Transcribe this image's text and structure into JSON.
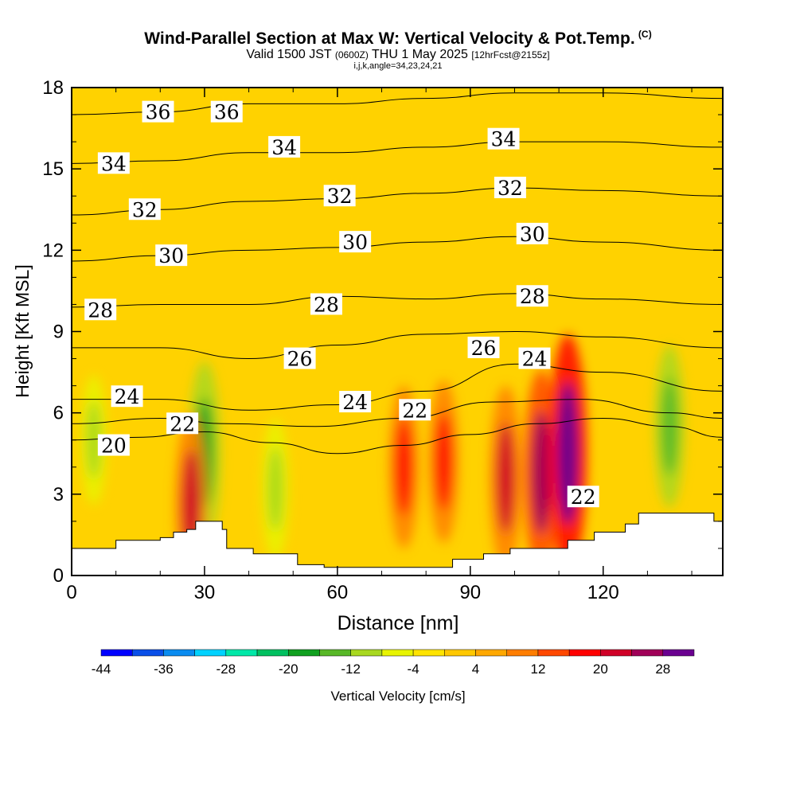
{
  "header": {
    "title": "Wind-Parallel Section at Max W: Vertical Velocity & Pot.Temp.",
    "copyright": "(C)",
    "valid_prefix": "Valid 1500 JST",
    "utc": "(0600Z)",
    "valid_date": "THU 1 May 2025",
    "forecast": "[12hrFcst@2155z]",
    "indices": "i,j,k,angle=34,23,24,21"
  },
  "chart_data": {
    "type": "heatmap",
    "title": "Wind-Parallel Section at Max W: Vertical Velocity & Pot.Temp.",
    "xlabel": "Distance [nm]",
    "ylabel": "Height [Kft MSL]",
    "xlim": [
      0,
      147
    ],
    "ylim": [
      0,
      18
    ],
    "x_ticks": [
      0,
      30,
      60,
      90,
      120
    ],
    "y_ticks": [
      0,
      3,
      6,
      9,
      12,
      15,
      18
    ],
    "colorbar": {
      "label": "Vertical Velocity [cm/s]",
      "tick_labels": [
        "-44",
        "-36",
        "-28",
        "-20",
        "-12",
        "-4",
        "4",
        "12",
        "20",
        "28"
      ],
      "levels": [
        -44,
        -40,
        -36,
        -32,
        -28,
        -24,
        -20,
        -16,
        -12,
        -8,
        -4,
        0,
        4,
        8,
        12,
        16,
        20,
        24,
        28,
        32
      ],
      "colors": [
        "#0000ff",
        "#0a4fe8",
        "#0a8cf0",
        "#00d2ff",
        "#00e8a8",
        "#00c060",
        "#10a020",
        "#58b828",
        "#a8d820",
        "#e8f400",
        "#ffe400",
        "#ffc800",
        "#ffa800",
        "#ff7e00",
        "#ff4800",
        "#ff0000",
        "#d00028",
        "#a00058",
        "#6a0090"
      ]
    },
    "terrain_profile": [
      [
        0,
        1
      ],
      [
        10,
        1
      ],
      [
        10,
        1.3
      ],
      [
        20,
        1.3
      ],
      [
        20,
        1.4
      ],
      [
        23,
        1.4
      ],
      [
        23,
        1.6
      ],
      [
        26,
        1.6
      ],
      [
        26,
        1.7
      ],
      [
        28,
        1.7
      ],
      [
        28,
        2
      ],
      [
        34,
        2
      ],
      [
        34,
        1.7
      ],
      [
        35,
        1.7
      ],
      [
        35,
        1
      ],
      [
        41,
        1
      ],
      [
        41,
        0.8
      ],
      [
        51,
        0.8
      ],
      [
        51,
        0.4
      ],
      [
        57,
        0.4
      ],
      [
        57,
        0.3
      ],
      [
        86,
        0.3
      ],
      [
        86,
        0.6
      ],
      [
        93,
        0.6
      ],
      [
        93,
        0.8
      ],
      [
        99,
        0.8
      ],
      [
        99,
        1
      ],
      [
        112,
        1
      ],
      [
        112,
        1.3
      ],
      [
        118,
        1.3
      ],
      [
        118,
        1.6
      ],
      [
        125,
        1.6
      ],
      [
        125,
        1.9
      ],
      [
        128,
        1.9
      ],
      [
        128,
        2.3
      ],
      [
        145,
        2.3
      ],
      [
        145,
        2
      ],
      [
        147,
        2
      ]
    ],
    "isentropes": [
      {
        "level": 20,
        "label": "20",
        "points": [
          [
            0,
            5.0
          ],
          [
            15,
            5.1
          ],
          [
            30,
            5.3
          ],
          [
            45,
            4.9
          ],
          [
            60,
            4.5
          ],
          [
            75,
            4.8
          ],
          [
            90,
            5.2
          ],
          [
            105,
            5.6
          ],
          [
            120,
            5.8
          ],
          [
            135,
            5.5
          ],
          [
            147,
            5.1
          ]
        ]
      },
      {
        "level": 22,
        "label": "22",
        "points": [
          [
            0,
            5.6
          ],
          [
            20,
            5.8
          ],
          [
            35,
            5.6
          ],
          [
            55,
            5.5
          ],
          [
            75,
            5.8
          ],
          [
            95,
            6.4
          ],
          [
            115,
            6.5
          ],
          [
            135,
            6.0
          ],
          [
            147,
            5.8
          ]
        ]
      },
      {
        "level": 24,
        "label": "24",
        "points": [
          [
            0,
            6.5
          ],
          [
            20,
            6.5
          ],
          [
            40,
            6.1
          ],
          [
            60,
            6.3
          ],
          [
            80,
            6.8
          ],
          [
            100,
            7.8
          ],
          [
            120,
            7.5
          ],
          [
            147,
            6.8
          ]
        ]
      },
      {
        "level": 26,
        "label": "26",
        "points": [
          [
            0,
            8.4
          ],
          [
            20,
            8.4
          ],
          [
            40,
            8.0
          ],
          [
            60,
            8.5
          ],
          [
            80,
            8.9
          ],
          [
            100,
            9.0
          ],
          [
            120,
            8.8
          ],
          [
            147,
            8.4
          ]
        ]
      },
      {
        "level": 28,
        "label": "28",
        "points": [
          [
            0,
            9.9
          ],
          [
            20,
            10.0
          ],
          [
            40,
            10.0
          ],
          [
            60,
            10.3
          ],
          [
            80,
            10.2
          ],
          [
            100,
            10.4
          ],
          [
            120,
            10.2
          ],
          [
            147,
            10.0
          ]
        ]
      },
      {
        "level": 30,
        "label": "30",
        "points": [
          [
            0,
            11.6
          ],
          [
            20,
            11.8
          ],
          [
            40,
            12.0
          ],
          [
            60,
            12.1
          ],
          [
            80,
            12.3
          ],
          [
            100,
            12.5
          ],
          [
            120,
            12.3
          ],
          [
            147,
            12.0
          ]
        ]
      },
      {
        "level": 32,
        "label": "32",
        "points": [
          [
            0,
            13.3
          ],
          [
            20,
            13.5
          ],
          [
            40,
            13.8
          ],
          [
            60,
            13.9
          ],
          [
            80,
            14.1
          ],
          [
            100,
            14.3
          ],
          [
            120,
            14.2
          ],
          [
            147,
            14.0
          ]
        ]
      },
      {
        "level": 34,
        "label": "34",
        "points": [
          [
            0,
            15.2
          ],
          [
            20,
            15.3
          ],
          [
            40,
            15.6
          ],
          [
            60,
            15.6
          ],
          [
            80,
            15.8
          ],
          [
            100,
            16.0
          ],
          [
            120,
            16.0
          ],
          [
            147,
            15.8
          ]
        ]
      },
      {
        "level": 36,
        "label": "36",
        "points": [
          [
            0,
            17.0
          ],
          [
            20,
            17.1
          ],
          [
            40,
            17.4
          ],
          [
            60,
            17.4
          ],
          [
            80,
            17.6
          ],
          [
            100,
            17.8
          ],
          [
            120,
            17.8
          ],
          [
            147,
            17.6
          ]
        ]
      }
    ],
    "contour_labels": [
      {
        "text": "36",
        "x": 19.5,
        "y": 17.1
      },
      {
        "text": "36",
        "x": 35.0,
        "y": 17.1
      },
      {
        "text": "34",
        "x": 9.5,
        "y": 15.2
      },
      {
        "text": "34",
        "x": 48.0,
        "y": 15.8
      },
      {
        "text": "34",
        "x": 97.5,
        "y": 16.1
      },
      {
        "text": "32",
        "x": 16.5,
        "y": 13.5
      },
      {
        "text": "32",
        "x": 60.5,
        "y": 14.0
      },
      {
        "text": "32",
        "x": 99.0,
        "y": 14.3
      },
      {
        "text": "30",
        "x": 22.5,
        "y": 11.8
      },
      {
        "text": "30",
        "x": 64.0,
        "y": 12.3
      },
      {
        "text": "30",
        "x": 104.0,
        "y": 12.6
      },
      {
        "text": "28",
        "x": 6.5,
        "y": 9.8
      },
      {
        "text": "28",
        "x": 57.5,
        "y": 10.0
      },
      {
        "text": "28",
        "x": 104.0,
        "y": 10.3
      },
      {
        "text": "26",
        "x": 51.5,
        "y": 8.0
      },
      {
        "text": "26",
        "x": 93.0,
        "y": 8.4
      },
      {
        "text": "24",
        "x": 12.5,
        "y": 6.6
      },
      {
        "text": "24",
        "x": 64.0,
        "y": 6.4
      },
      {
        "text": "24",
        "x": 104.5,
        "y": 8.0
      },
      {
        "text": "22",
        "x": 25.0,
        "y": 5.6
      },
      {
        "text": "22",
        "x": 77.5,
        "y": 6.1
      },
      {
        "text": "22",
        "x": 115.5,
        "y": 2.9
      },
      {
        "text": "20",
        "x": 9.5,
        "y": 4.8
      }
    ],
    "w_features": [
      {
        "x": 30,
        "y": 4.5,
        "value": -20
      },
      {
        "x": 46,
        "y": 3.2,
        "value": -12
      },
      {
        "x": 106,
        "y": 3.8,
        "value": 24
      },
      {
        "x": 112,
        "y": 4.5,
        "value": 30
      },
      {
        "x": 98,
        "y": 3.6,
        "value": 20
      },
      {
        "x": 75,
        "y": 4.0,
        "value": 16
      },
      {
        "x": 135,
        "y": 5.5,
        "value": -16
      },
      {
        "x": 27,
        "y": 2.6,
        "value": 20
      },
      {
        "x": 84,
        "y": 4.2,
        "value": 16
      },
      {
        "x": 5,
        "y": 5.0,
        "value": -10
      }
    ]
  }
}
